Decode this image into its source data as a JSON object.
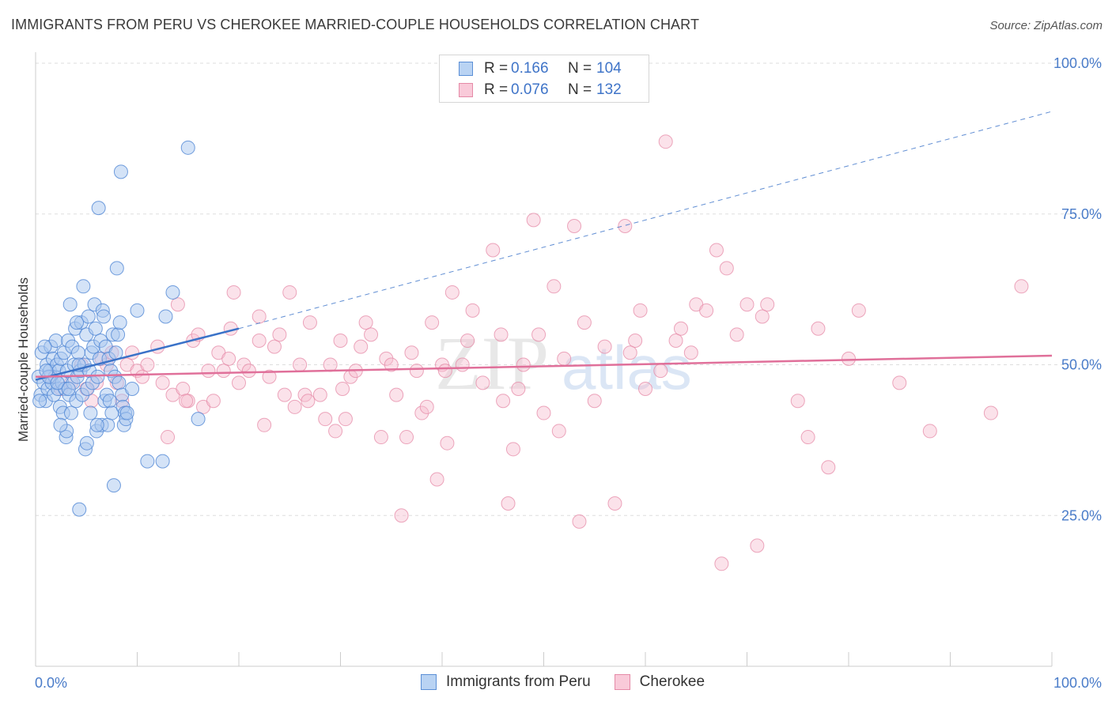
{
  "header": {
    "title": "IMMIGRANTS FROM PERU VS CHEROKEE MARRIED-COUPLE HOUSEHOLDS CORRELATION CHART",
    "source": "Source: ZipAtlas.com"
  },
  "legend": {
    "rows": [
      {
        "r_label": "R =",
        "r_value": "0.166",
        "n_label": "N =",
        "n_value": "104"
      },
      {
        "r_label": "R =",
        "r_value": "0.076",
        "n_label": "N =",
        "n_value": "132"
      }
    ]
  },
  "bottom_legend": {
    "items": [
      {
        "label": "Immigrants from Peru"
      },
      {
        "label": "Cherokee"
      }
    ]
  },
  "watermark": {
    "zip": "ZIP",
    "atlas": "atlas"
  },
  "colors": {
    "blue_fill": "#a9c8f0",
    "blue_stroke": "#4f86d4",
    "blue_line": "#3a72c8",
    "pink_fill": "#f7bfd0",
    "pink_stroke": "#e58aa7",
    "pink_line": "#e0709a",
    "grid": "#dddddd",
    "axis_text": "#4a7cc9"
  },
  "chart_data": {
    "type": "scatter",
    "title": "IMMIGRANTS FROM PERU VS CHEROKEE MARRIED-COUPLE HOUSEHOLDS CORRELATION CHART",
    "xlabel": "",
    "ylabel": "Married-couple Households",
    "xlim": [
      0,
      100
    ],
    "ylim": [
      0,
      105
    ],
    "x_tick_labels": [
      "0.0%",
      "100.0%"
    ],
    "y_tick_labels": [
      "25.0%",
      "50.0%",
      "75.0%",
      "100.0%"
    ],
    "y_ticks": [
      25,
      50,
      75,
      100
    ],
    "grid": true,
    "legend_position": "top-center",
    "series": [
      {
        "name": "Immigrants from Peru",
        "trend": {
          "x0": 0,
          "y0": 47.5,
          "x1": 20,
          "y1": 56.0,
          "dashed_to_x": 100,
          "dashed_to_y": 92.0
        },
        "points": [
          [
            0.3,
            48
          ],
          [
            0.5,
            45
          ],
          [
            0.6,
            52
          ],
          [
            0.8,
            47
          ],
          [
            1.0,
            44
          ],
          [
            1.1,
            50
          ],
          [
            1.2,
            46
          ],
          [
            1.4,
            49
          ],
          [
            1.5,
            53
          ],
          [
            1.6,
            47
          ],
          [
            1.7,
            51
          ],
          [
            1.8,
            45
          ],
          [
            1.9,
            48
          ],
          [
            2.0,
            54
          ],
          [
            2.1,
            50
          ],
          [
            2.2,
            46
          ],
          [
            2.3,
            49
          ],
          [
            2.4,
            43
          ],
          [
            2.5,
            51
          ],
          [
            2.6,
            47
          ],
          [
            2.7,
            42
          ],
          [
            2.8,
            52
          ],
          [
            2.9,
            46
          ],
          [
            3.0,
            38
          ],
          [
            3.1,
            49
          ],
          [
            3.2,
            54
          ],
          [
            3.3,
            45
          ],
          [
            3.4,
            60
          ],
          [
            3.5,
            42
          ],
          [
            3.6,
            53
          ],
          [
            3.7,
            47
          ],
          [
            3.8,
            50
          ],
          [
            3.9,
            56
          ],
          [
            4.0,
            44
          ],
          [
            4.1,
            48
          ],
          [
            4.2,
            52
          ],
          [
            4.3,
            26
          ],
          [
            4.4,
            49
          ],
          [
            4.5,
            57
          ],
          [
            4.6,
            45
          ],
          [
            4.7,
            63
          ],
          [
            4.8,
            50
          ],
          [
            4.9,
            36
          ],
          [
            5.0,
            55
          ],
          [
            5.1,
            46
          ],
          [
            5.2,
            58
          ],
          [
            5.3,
            49
          ],
          [
            5.4,
            42
          ],
          [
            5.5,
            52
          ],
          [
            5.6,
            47
          ],
          [
            5.7,
            53
          ],
          [
            5.8,
            60
          ],
          [
            5.9,
            56
          ],
          [
            6.0,
            39
          ],
          [
            6.1,
            48
          ],
          [
            6.2,
            76
          ],
          [
            6.3,
            51
          ],
          [
            6.4,
            54
          ],
          [
            6.5,
            40
          ],
          [
            6.6,
            59
          ],
          [
            6.7,
            58
          ],
          [
            6.8,
            44
          ],
          [
            6.9,
            53
          ],
          [
            7.0,
            45
          ],
          [
            7.1,
            40
          ],
          [
            7.2,
            51
          ],
          [
            7.3,
            44
          ],
          [
            7.4,
            49
          ],
          [
            7.5,
            42
          ],
          [
            7.6,
            55
          ],
          [
            7.7,
            30
          ],
          [
            7.8,
            48
          ],
          [
            7.9,
            52
          ],
          [
            8.0,
            66
          ],
          [
            8.1,
            55
          ],
          [
            8.2,
            47
          ],
          [
            8.3,
            57
          ],
          [
            8.4,
            82
          ],
          [
            8.5,
            45
          ],
          [
            8.6,
            43
          ],
          [
            8.7,
            40
          ],
          [
            8.8,
            42
          ],
          [
            8.9,
            41
          ],
          [
            9.0,
            42
          ],
          [
            9.5,
            46
          ],
          [
            10.0,
            59
          ],
          [
            11.0,
            34
          ],
          [
            12.5,
            34
          ],
          [
            12.8,
            58
          ],
          [
            13.5,
            62
          ],
          [
            15.0,
            86
          ],
          [
            16.0,
            41
          ],
          [
            0.9,
            53
          ],
          [
            1.3,
            48
          ],
          [
            2.15,
            47
          ],
          [
            3.05,
            39
          ],
          [
            4.05,
            57
          ],
          [
            5.05,
            37
          ],
          [
            6.05,
            40
          ],
          [
            2.45,
            40
          ],
          [
            1.05,
            49
          ],
          [
            0.4,
            44
          ],
          [
            3.25,
            46
          ],
          [
            4.25,
            50
          ]
        ]
      },
      {
        "name": "Cherokee",
        "trend": {
          "x0": 0,
          "y0": 48.0,
          "x1": 100,
          "y1": 51.5
        },
        "points": [
          [
            1.5,
            48
          ],
          [
            2.5,
            46
          ],
          [
            3.5,
            47
          ],
          [
            4.5,
            50
          ],
          [
            5.0,
            46
          ],
          [
            5.5,
            44
          ],
          [
            6.0,
            47
          ],
          [
            6.5,
            51
          ],
          [
            7.0,
            50
          ],
          [
            7.5,
            52
          ],
          [
            8.0,
            47
          ],
          [
            8.5,
            44
          ],
          [
            9.0,
            50
          ],
          [
            9.5,
            52
          ],
          [
            10.0,
            49
          ],
          [
            10.5,
            48
          ],
          [
            11.0,
            50
          ],
          [
            12.0,
            53
          ],
          [
            12.5,
            47
          ],
          [
            13.0,
            38
          ],
          [
            13.5,
            45
          ],
          [
            14.0,
            60
          ],
          [
            14.5,
            46
          ],
          [
            15.0,
            44
          ],
          [
            15.5,
            54
          ],
          [
            16.0,
            55
          ],
          [
            16.5,
            43
          ],
          [
            17.0,
            49
          ],
          [
            17.5,
            44
          ],
          [
            18.0,
            52
          ],
          [
            18.5,
            49
          ],
          [
            19.0,
            51
          ],
          [
            19.5,
            62
          ],
          [
            20.0,
            47
          ],
          [
            20.5,
            50
          ],
          [
            21.0,
            49
          ],
          [
            22.0,
            54
          ],
          [
            22.5,
            40
          ],
          [
            23.0,
            48
          ],
          [
            23.5,
            53
          ],
          [
            24.0,
            55
          ],
          [
            24.5,
            45
          ],
          [
            25.0,
            62
          ],
          [
            25.5,
            43
          ],
          [
            26.0,
            50
          ],
          [
            26.5,
            45
          ],
          [
            27.0,
            57
          ],
          [
            28.0,
            45
          ],
          [
            28.5,
            41
          ],
          [
            29.0,
            50
          ],
          [
            29.5,
            39
          ],
          [
            30.0,
            54
          ],
          [
            30.5,
            41
          ],
          [
            31.0,
            48
          ],
          [
            31.5,
            49
          ],
          [
            32.0,
            53
          ],
          [
            32.5,
            57
          ],
          [
            33.0,
            55
          ],
          [
            34.0,
            38
          ],
          [
            34.5,
            51
          ],
          [
            35.0,
            50
          ],
          [
            35.5,
            45
          ],
          [
            36.0,
            25
          ],
          [
            36.5,
            38
          ],
          [
            37.0,
            52
          ],
          [
            37.5,
            49
          ],
          [
            38.0,
            42
          ],
          [
            38.5,
            43
          ],
          [
            39.0,
            57
          ],
          [
            39.5,
            31
          ],
          [
            40.0,
            50
          ],
          [
            40.5,
            37
          ],
          [
            41.0,
            62
          ],
          [
            42.0,
            50
          ],
          [
            42.5,
            54
          ],
          [
            43.0,
            59
          ],
          [
            44.0,
            47
          ],
          [
            45.0,
            69
          ],
          [
            46.0,
            44
          ],
          [
            46.5,
            27
          ],
          [
            47.0,
            36
          ],
          [
            47.5,
            46
          ],
          [
            48.0,
            50
          ],
          [
            49.0,
            74
          ],
          [
            49.5,
            55
          ],
          [
            50.0,
            42
          ],
          [
            51.0,
            63
          ],
          [
            51.5,
            39
          ],
          [
            52.0,
            51
          ],
          [
            53.0,
            73
          ],
          [
            53.5,
            24
          ],
          [
            54.0,
            57
          ],
          [
            55.0,
            44
          ],
          [
            56.0,
            53
          ],
          [
            57.0,
            27
          ],
          [
            58.0,
            73
          ],
          [
            59.0,
            54
          ],
          [
            60.0,
            46
          ],
          [
            61.5,
            49
          ],
          [
            62.0,
            87
          ],
          [
            63.0,
            54
          ],
          [
            64.5,
            52
          ],
          [
            65.0,
            60
          ],
          [
            66.0,
            59
          ],
          [
            67.0,
            69
          ],
          [
            68.0,
            66
          ],
          [
            69.0,
            55
          ],
          [
            70.0,
            60
          ],
          [
            71.0,
            20
          ],
          [
            72.0,
            60
          ],
          [
            75.0,
            44
          ],
          [
            76.0,
            38
          ],
          [
            77.0,
            56
          ],
          [
            78.0,
            33
          ],
          [
            80.0,
            51
          ],
          [
            81.0,
            59
          ],
          [
            88.0,
            39
          ],
          [
            94.0,
            42
          ],
          [
            97.0,
            63
          ],
          [
            67.5,
            17
          ],
          [
            71.5,
            58
          ],
          [
            85.0,
            47
          ],
          [
            59.5,
            59
          ],
          [
            22.0,
            58
          ],
          [
            14.8,
            44
          ],
          [
            19.2,
            56
          ],
          [
            26.8,
            44
          ],
          [
            40.3,
            49
          ],
          [
            58.5,
            52
          ],
          [
            63.5,
            56
          ],
          [
            45.8,
            55
          ],
          [
            30.2,
            46
          ]
        ]
      }
    ]
  }
}
